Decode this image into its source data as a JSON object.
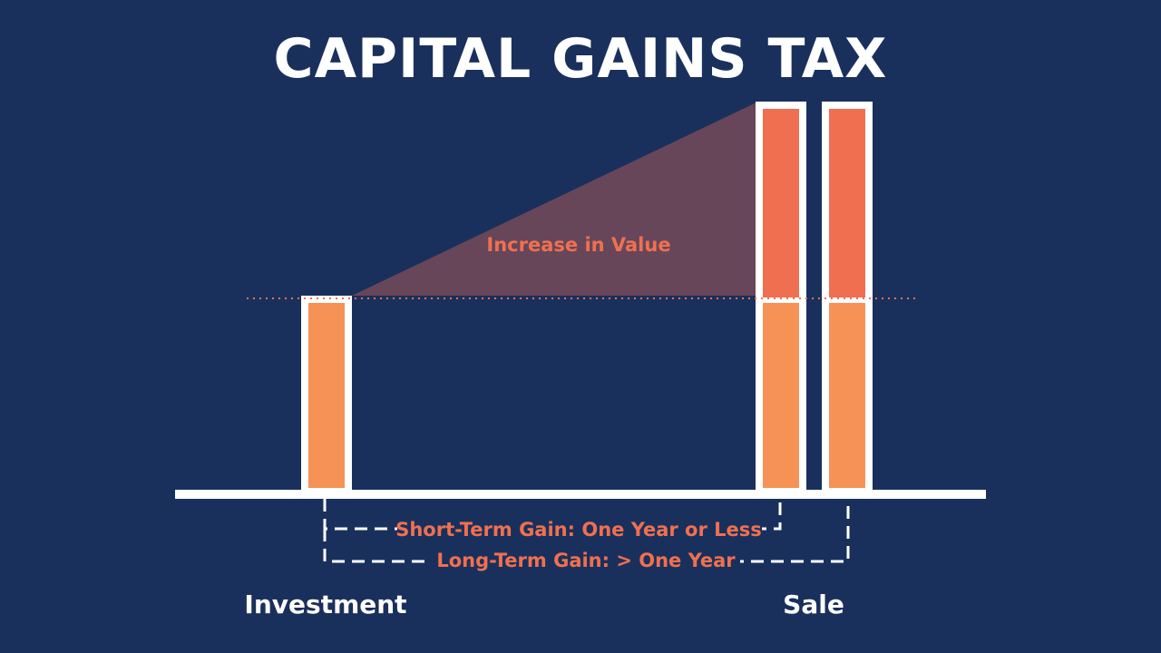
{
  "title": "CAPITAL GAINS TAX",
  "labels": {
    "increase": "Increase in Value",
    "short_term": "Short-Term Gain: One Year or Less",
    "long_term": "Long-Term Gain: > One Year",
    "investment": "Investment",
    "sale": "Sale"
  },
  "colors": {
    "background": "#1a305c",
    "base_value": "#f79257",
    "gain_value": "#ef6f50",
    "increase_area": "#674659",
    "label_text": "#ef7050",
    "outline": "#ffffff"
  }
}
